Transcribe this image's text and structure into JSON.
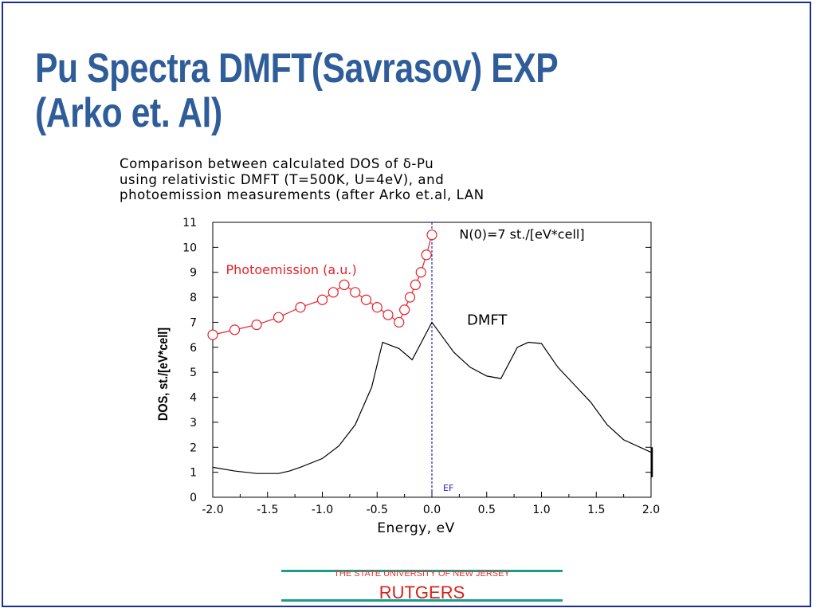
{
  "slide": {
    "title_line1": "Pu Spectra DMFT(Savrasov) EXP",
    "title_line2": "(Arko et. Al)"
  },
  "caption": {
    "line1": "Comparison between calculated DOS of δ-Pu",
    "line2": "using relativistic DMFT (T=500K, U=4eV), and",
    "line3": "photoemission measurements (after Arko et.al, LAN"
  },
  "footer": {
    "university": "THE STATE UNIVERSITY OF NEW JERSEY",
    "name": "RUTGERS"
  },
  "colors": {
    "title": "#2e5d9a",
    "photoemission": "#e8202a",
    "dmft": "#000000",
    "fermi_line": "#2222cc",
    "footer_text": "#d9201a",
    "footer_line": "#1a9e8c"
  },
  "chart_data": {
    "type": "line",
    "xlabel": "Energy, eV",
    "ylabel": "DOS, st./[eV*cell]",
    "xlim": [
      -2.0,
      2.0
    ],
    "ylim": [
      0,
      11
    ],
    "xticks": [
      "-2.0",
      "-1.5",
      "-1.0",
      "-0.5",
      "0.0",
      "0.5",
      "1.0",
      "1.5",
      "2.0"
    ],
    "yticks": [
      "0",
      "1",
      "2",
      "3",
      "4",
      "5",
      "6",
      "7",
      "8",
      "9",
      "10",
      "11"
    ],
    "grid": false,
    "annotations": {
      "n0": "N(0)=7 st./[eV*cell]",
      "photoemission_label": "Photoemission (a.u.)",
      "dmft_label": "DMFT",
      "ef_label": "EF"
    },
    "fermi_level": 0.0,
    "series": [
      {
        "name": "Photoemission (a.u.)",
        "marker": "circle",
        "x": [
          -2.0,
          -1.8,
          -1.6,
          -1.4,
          -1.2,
          -1.0,
          -0.9,
          -0.8,
          -0.7,
          -0.6,
          -0.5,
          -0.4,
          -0.3,
          -0.25,
          -0.2,
          -0.15,
          -0.1,
          -0.05,
          0.0
        ],
        "y": [
          6.5,
          6.7,
          6.9,
          7.2,
          7.6,
          7.9,
          8.2,
          8.5,
          8.2,
          7.9,
          7.6,
          7.3,
          7.0,
          7.5,
          8.0,
          8.5,
          9.0,
          9.7,
          10.5
        ]
      },
      {
        "name": "DMFT",
        "marker": "none",
        "x": [
          -2.0,
          -1.8,
          -1.6,
          -1.4,
          -1.3,
          -1.2,
          -1.0,
          -0.85,
          -0.7,
          -0.55,
          -0.45,
          -0.3,
          -0.18,
          0.0,
          0.2,
          0.35,
          0.5,
          0.63,
          0.78,
          0.88,
          1.0,
          1.15,
          1.3,
          1.45,
          1.6,
          1.75,
          2.0
        ],
        "y": [
          1.2,
          1.05,
          0.95,
          0.95,
          1.05,
          1.2,
          1.55,
          2.05,
          2.9,
          4.4,
          6.2,
          5.95,
          5.5,
          7.0,
          5.8,
          5.2,
          4.85,
          4.75,
          6.0,
          6.2,
          6.15,
          5.2,
          4.5,
          3.8,
          2.9,
          2.3,
          1.8
        ]
      }
    ]
  }
}
